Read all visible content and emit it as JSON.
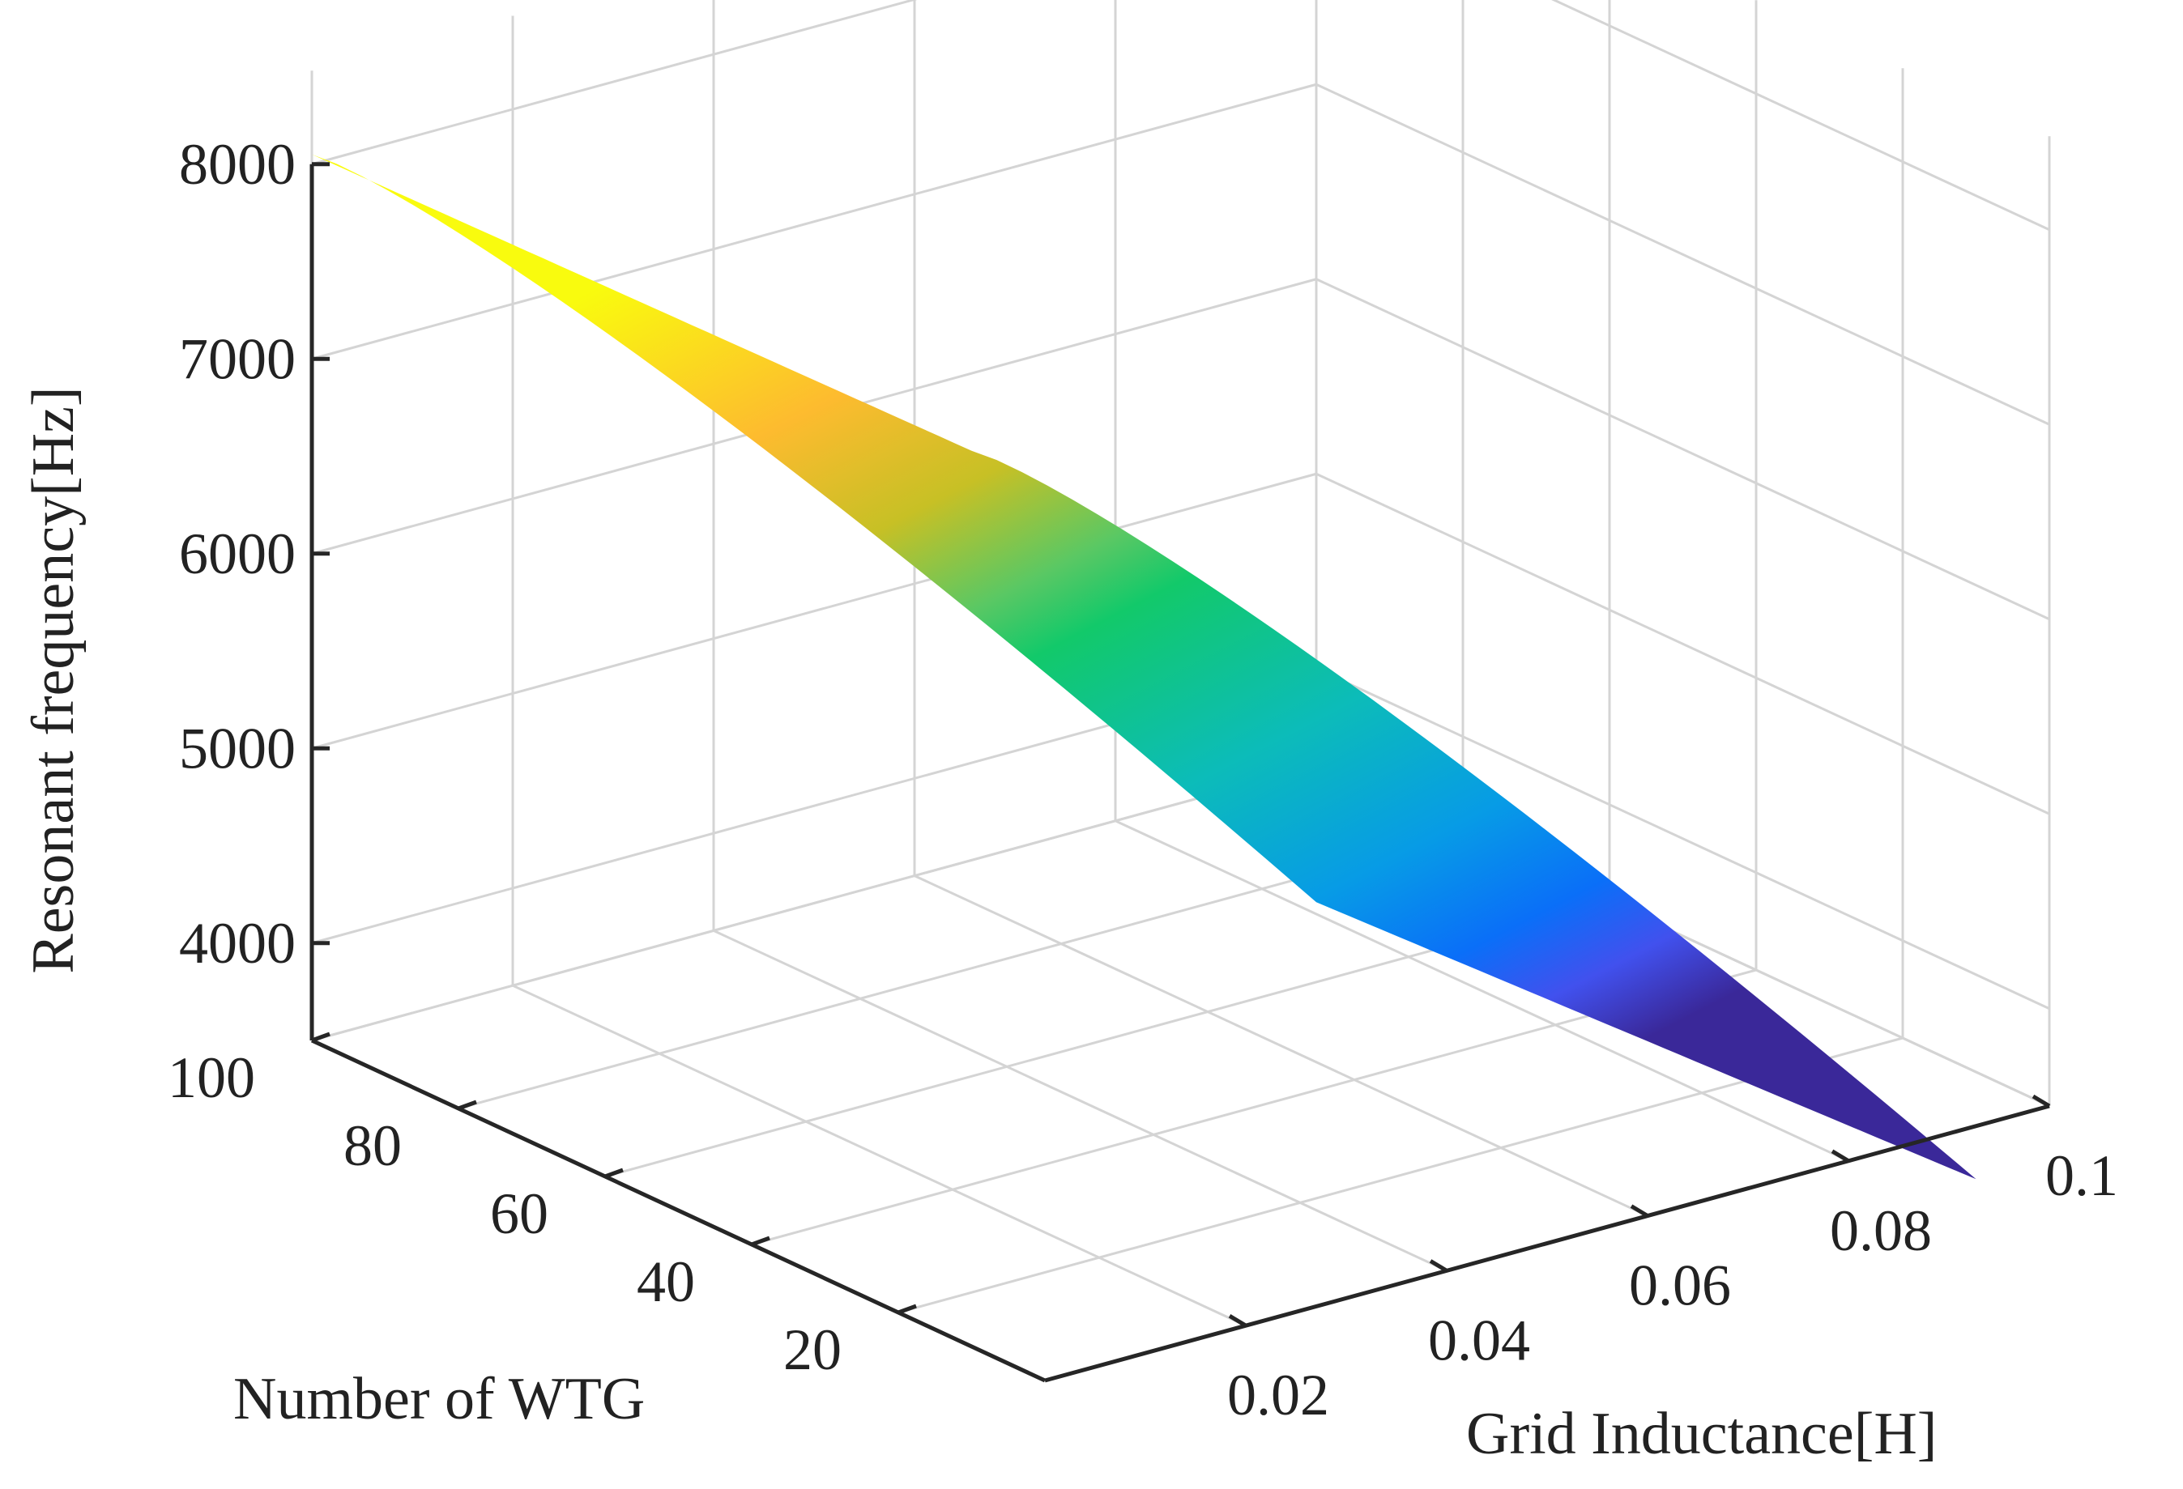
{
  "chart_data": {
    "type": "surface3d",
    "title": "",
    "xlabel": "Grid Inductance[H]",
    "ylabel": "Number of WTG",
    "zlabel": "Resonant frequency[Hz]",
    "xlim": [
      0,
      0.1
    ],
    "ylim": [
      0,
      100
    ],
    "zlim": [
      3500,
      8000
    ],
    "x_ticks": [
      0.02,
      0.04,
      0.06,
      0.08,
      0.1
    ],
    "x_tick_labels": [
      "0.02",
      "0.04",
      "0.06",
      "0.08",
      "0.1"
    ],
    "y_ticks": [
      20,
      40,
      60,
      80,
      100
    ],
    "y_tick_labels": [
      "20",
      "40",
      "60",
      "80",
      "100"
    ],
    "z_ticks": [
      4000,
      5000,
      6000,
      7000,
      8000
    ],
    "z_tick_labels": [
      "4000",
      "5000",
      "6000",
      "7000",
      "8000"
    ],
    "grid": true,
    "colormap": "parula",
    "surface_samples": {
      "x": [
        0.0,
        0.1
      ],
      "y": [
        10,
        100
      ],
      "z": [
        [
          8100,
          8050
        ],
        [
          2950,
          2800
        ]
      ]
    }
  }
}
